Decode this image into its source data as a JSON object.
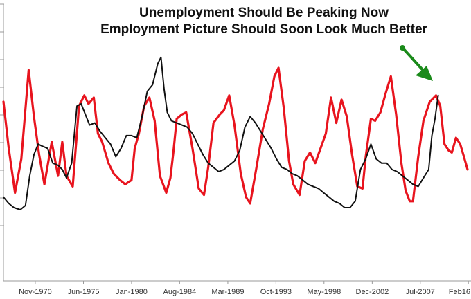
{
  "chart_data": {
    "type": "line",
    "title": [
      "Unemployment Should Be Peaking Now",
      "Employment Picture Should Soon Look Much Better"
    ],
    "x_tick_labels": [
      "Nov-1970",
      "Jun-1975",
      "Jan-1980",
      "Aug-1984",
      "Mar-1989",
      "Oct-1993",
      "May-1998",
      "Dec-2002",
      "Jul-2007",
      "Feb16"
    ],
    "x_tick_years": [
      1970.83,
      1975.42,
      1980.0,
      1984.58,
      1989.17,
      1993.75,
      1998.33,
      2002.92,
      2007.5,
      2012.08
    ],
    "x_range": [
      1967.8,
      2012.0
    ],
    "y_range": [
      0,
      100
    ],
    "y_grid_lines": 9,
    "grid": false,
    "annotation": {
      "type": "arrow",
      "color": "#1a8a1a",
      "points_to": "red series peak near 2009"
    },
    "series": [
      {
        "name": "Red series",
        "color": "#e8141e",
        "x": [
          1967.8,
          1968.3,
          1968.9,
          1969.5,
          1970.2,
          1970.7,
          1971.2,
          1971.7,
          1972.4,
          1973.0,
          1973.4,
          1973.8,
          1974.4,
          1975.0,
          1975.5,
          1975.9,
          1976.4,
          1976.8,
          1977.2,
          1977.8,
          1978.3,
          1978.9,
          1979.4,
          1980.0,
          1980.3,
          1980.7,
          1981.2,
          1981.7,
          1982.2,
          1982.7,
          1983.3,
          1983.7,
          1984.0,
          1984.3,
          1984.8,
          1985.2,
          1985.8,
          1986.4,
          1986.9,
          1987.3,
          1987.8,
          1988.4,
          1988.8,
          1989.3,
          1989.8,
          1990.4,
          1990.9,
          1991.3,
          1991.9,
          1992.5,
          1993.1,
          1993.6,
          1994.0,
          1994.5,
          1995.0,
          1995.4,
          1996.0,
          1996.5,
          1997.0,
          1997.5,
          1998.0,
          1998.5,
          1999.0,
          1999.5,
          2000.0,
          2000.5,
          2001.0,
          2001.5,
          2002.0,
          2002.3,
          2002.8,
          2003.2,
          2003.7,
          2004.2,
          2004.7,
          2005.2,
          2005.7,
          2006.1,
          2006.5,
          2006.8,
          2007.3,
          2007.8,
          2008.4,
          2009.0,
          2009.4,
          2009.8,
          2010.2,
          2010.5,
          2010.9,
          2011.3,
          2011.6,
          2012.0
        ],
        "y": [
          67,
          45,
          24,
          40,
          82,
          60,
          42,
          28,
          48,
          32,
          48,
          32,
          27,
          65,
          70,
          66,
          69,
          52,
          48,
          38,
          33,
          30,
          28,
          30,
          45,
          52,
          65,
          69,
          58,
          32,
          24,
          31,
          44,
          59,
          61,
          62,
          45,
          26,
          23,
          36,
          57,
          61,
          63,
          70,
          56,
          33,
          22,
          19,
          36,
          54,
          66,
          79,
          83,
          64,
          39,
          28,
          23,
          39,
          43,
          38,
          45,
          52,
          69,
          57,
          68,
          60,
          42,
          27,
          26,
          41,
          59,
          58,
          62,
          71,
          79,
          61,
          38,
          25,
          20,
          20,
          41,
          58,
          67,
          70,
          65,
          47,
          44,
          43,
          50,
          47,
          42,
          35
        ]
      },
      {
        "name": "Black series",
        "color": "#111111",
        "x": [
          1967.8,
          1968.3,
          1968.8,
          1969.4,
          1969.9,
          1970.3,
          1970.7,
          1971.1,
          1971.5,
          1972.0,
          1972.5,
          1973.0,
          1973.4,
          1973.8,
          1974.3,
          1974.8,
          1975.2,
          1975.6,
          1976.0,
          1976.5,
          1977.0,
          1977.5,
          1978.0,
          1978.5,
          1979.0,
          1979.5,
          1980.0,
          1980.5,
          1981.0,
          1981.5,
          1982.0,
          1982.5,
          1982.8,
          1983.1,
          1983.4,
          1983.8,
          1984.3,
          1984.8,
          1985.3,
          1985.8,
          1986.3,
          1986.8,
          1987.3,
          1987.8,
          1988.3,
          1988.8,
          1989.3,
          1989.8,
          1990.3,
          1990.8,
          1991.3,
          1991.8,
          1992.3,
          1992.8,
          1993.3,
          1993.8,
          1994.3,
          1994.8,
          1995.3,
          1995.8,
          1996.3,
          1996.8,
          1997.3,
          1997.8,
          1998.3,
          1998.8,
          1999.3,
          1999.8,
          2000.3,
          2000.8,
          2001.3,
          2001.8,
          2002.3,
          2002.8,
          2003.3,
          2003.8,
          2004.3,
          2004.8,
          2005.3,
          2005.8,
          2006.3,
          2006.8,
          2007.3,
          2007.8,
          2008.3,
          2008.6,
          2008.9,
          2009.2
        ],
        "y": [
          22,
          19,
          17,
          16,
          18,
          32,
          42,
          47,
          46,
          45,
          38,
          37,
          35,
          31,
          38,
          65,
          66,
          61,
          56,
          57,
          53,
          50,
          47,
          41,
          45,
          51,
          51,
          50,
          60,
          72,
          75,
          85,
          88,
          73,
          62,
          58,
          57,
          56,
          55,
          52,
          47,
          42,
          38,
          36,
          34,
          35,
          37,
          39,
          44,
          55,
          60,
          57,
          53,
          49,
          45,
          40,
          36,
          35,
          33,
          32,
          30,
          28,
          27,
          26,
          24,
          22,
          20,
          19,
          17,
          17,
          20,
          35,
          40,
          47,
          40,
          38,
          38,
          35,
          34,
          32,
          30,
          28,
          27,
          31,
          35,
          51,
          59,
          70
        ]
      }
    ]
  }
}
